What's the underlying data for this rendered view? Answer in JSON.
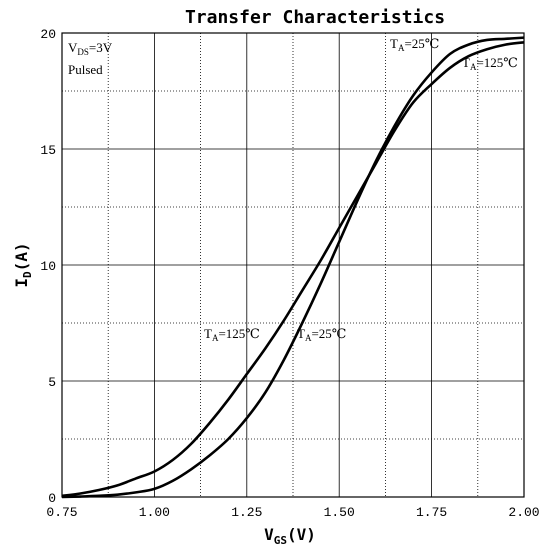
{
  "chart_data": {
    "type": "line",
    "title": "Transfer Characteristics",
    "xlabel": {
      "main": "V",
      "sub": "GS",
      "unit": "(V)"
    },
    "ylabel": {
      "main": "I",
      "sub": "D",
      "unit": "(A)"
    },
    "xlim": [
      0.75,
      2.0
    ],
    "ylim": [
      0,
      20
    ],
    "x_ticks": [
      0.75,
      1.0,
      1.25,
      1.5,
      1.75,
      2.0
    ],
    "x_tick_labels": [
      "0.75",
      "1.00",
      "1.25",
      "1.50",
      "1.75",
      "2.00"
    ],
    "y_ticks": [
      0,
      5,
      10,
      15,
      20
    ],
    "y_tick_labels": [
      "0",
      "5",
      "10",
      "15",
      "20"
    ],
    "grid": true,
    "conditions": [
      {
        "main": "V",
        "sub": "DS",
        "text": "=3V"
      },
      {
        "main": "",
        "sub": "",
        "text": "Pulsed"
      }
    ],
    "series": [
      {
        "name": {
          "main": "T",
          "sub": "A",
          "text": "=125℃"
        },
        "x": [
          0.75,
          0.8,
          0.85,
          0.9,
          0.95,
          1.0,
          1.05,
          1.1,
          1.15,
          1.2,
          1.25,
          1.3,
          1.35,
          1.4,
          1.45,
          1.5,
          1.55,
          1.6,
          1.65,
          1.7,
          1.75,
          1.8,
          1.85,
          1.9,
          1.95,
          2.0
        ],
        "values": [
          0.05,
          0.15,
          0.3,
          0.5,
          0.8,
          1.1,
          1.6,
          2.3,
          3.2,
          4.2,
          5.3,
          6.4,
          7.6,
          8.9,
          10.2,
          11.6,
          13.0,
          14.4,
          15.8,
          17.0,
          17.8,
          18.5,
          19.0,
          19.3,
          19.5,
          19.6
        ]
      },
      {
        "name": {
          "main": "T",
          "sub": "A",
          "text": "=25℃"
        },
        "x": [
          0.75,
          0.8,
          0.85,
          0.9,
          0.95,
          1.0,
          1.05,
          1.1,
          1.15,
          1.2,
          1.25,
          1.3,
          1.35,
          1.4,
          1.45,
          1.5,
          1.55,
          1.6,
          1.65,
          1.7,
          1.75,
          1.8,
          1.85,
          1.9,
          1.95,
          2.0
        ],
        "values": [
          0,
          0.02,
          0.05,
          0.1,
          0.2,
          0.35,
          0.7,
          1.2,
          1.8,
          2.5,
          3.4,
          4.5,
          5.9,
          7.5,
          9.2,
          11.0,
          12.8,
          14.5,
          16.0,
          17.3,
          18.3,
          19.1,
          19.5,
          19.7,
          19.75,
          19.8
        ]
      }
    ],
    "curve_labels": [
      {
        "series": 0,
        "position": "lower-left of curve near x=1.25"
      },
      {
        "series": 1,
        "position": "lower-right of curve near x=1.45"
      },
      {
        "series": 1,
        "position": "top near x=1.65"
      },
      {
        "series": 0,
        "position": "top-right near x=1.90"
      }
    ]
  }
}
